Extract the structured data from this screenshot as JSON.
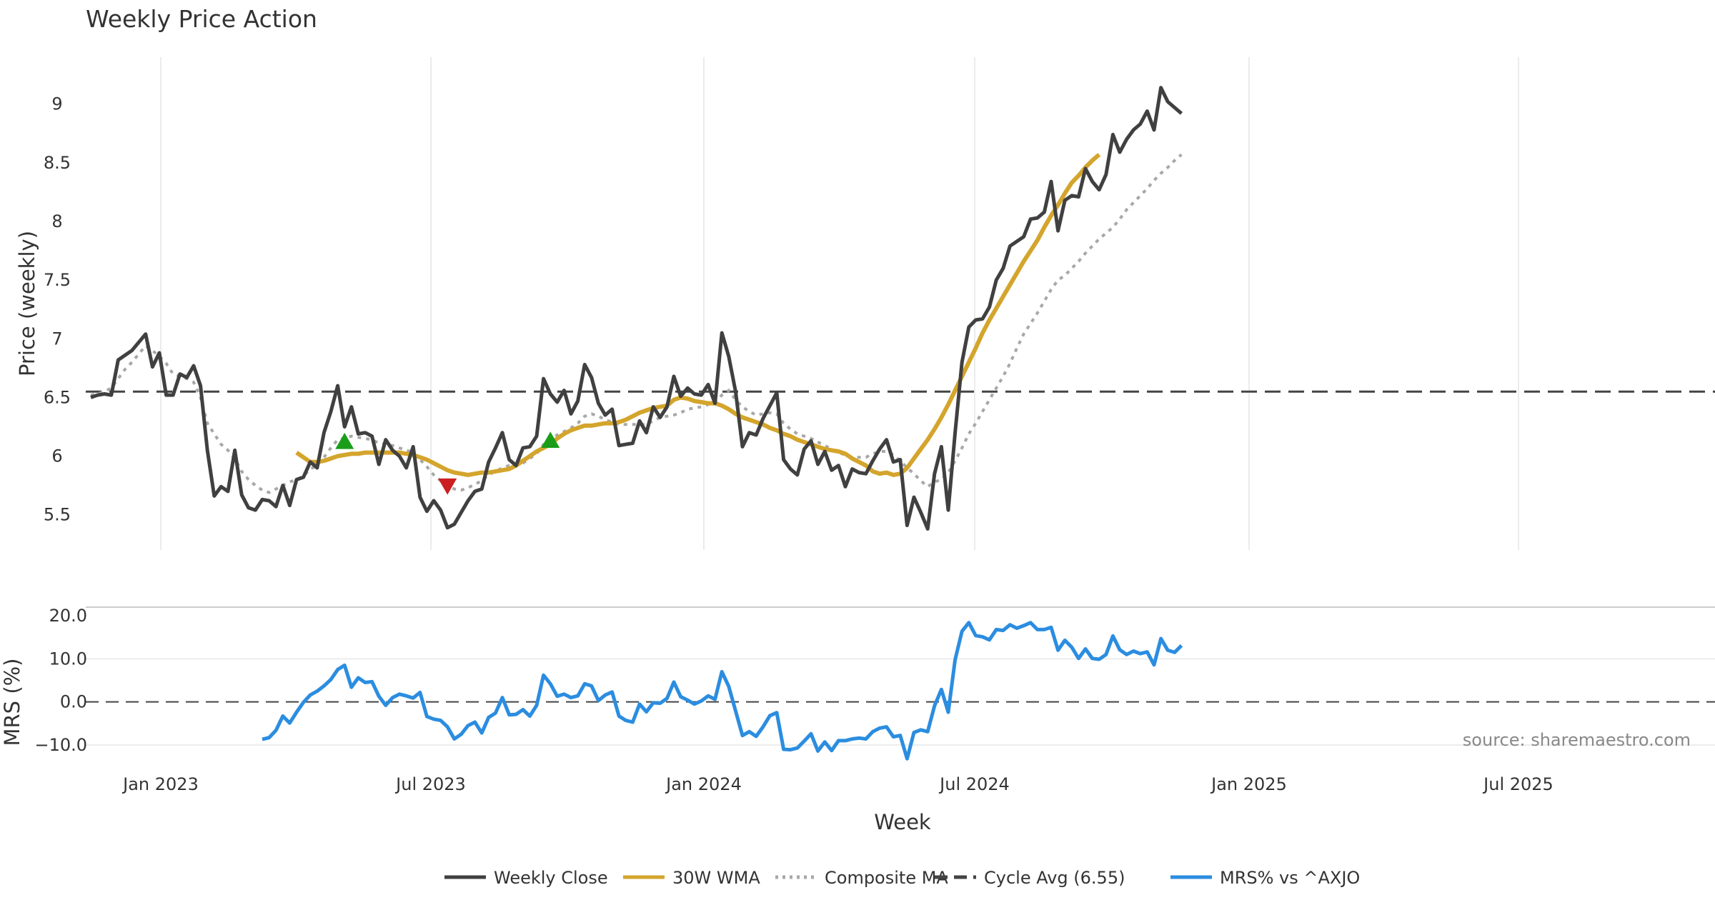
{
  "chart_data": {
    "type": "line",
    "title": "Weekly Price Action",
    "xlabel": "Week",
    "x_ticks": [
      "Jan 2023",
      "Jul 2023",
      "Jan 2024",
      "Jul 2024",
      "Jan 2025",
      "Jul 2025"
    ],
    "price_panel": {
      "ylabel": "Price (weekly)",
      "ylim": [
        5.2,
        9.4
      ],
      "y_ticks": [
        "5.5",
        "6",
        "6.5",
        "7",
        "7.5",
        "8",
        "8.5",
        "9"
      ],
      "grid": "vertical",
      "series": [
        {
          "name": "Weekly Close",
          "color": "#404040",
          "style": "solid",
          "values": [
            6.5,
            6.52,
            6.53,
            6.52,
            6.82,
            6.86,
            6.9,
            6.97,
            7.04,
            6.76,
            6.88,
            6.52,
            6.52,
            6.7,
            6.67,
            6.77,
            6.6,
            6.05,
            5.66,
            5.74,
            5.7,
            6.05,
            5.67,
            5.56,
            5.54,
            5.63,
            5.62,
            5.57,
            5.75,
            5.58,
            5.8,
            5.82,
            5.95,
            5.9,
            6.2,
            6.38,
            6.6,
            6.25,
            6.42,
            6.19,
            6.2,
            6.17,
            5.93,
            6.14,
            6.05,
            6.0,
            5.9,
            6.08,
            5.65,
            5.53,
            5.62,
            5.54,
            5.39,
            5.42,
            5.52,
            5.62,
            5.7,
            5.72,
            5.95,
            6.07,
            6.2,
            5.97,
            5.92,
            6.07,
            6.08,
            6.17,
            6.66,
            6.53,
            6.46,
            6.56,
            6.36,
            6.47,
            6.78,
            6.67,
            6.45,
            6.35,
            6.4,
            6.09,
            6.1,
            6.11,
            6.3,
            6.2,
            6.42,
            6.33,
            6.42,
            6.68,
            6.51,
            6.58,
            6.53,
            6.52,
            6.61,
            6.45,
            7.05,
            6.85,
            6.55,
            6.08,
            6.2,
            6.18,
            6.32,
            6.43,
            6.54,
            5.97,
            5.89,
            5.84,
            6.06,
            6.13,
            5.93,
            6.04,
            5.88,
            5.92,
            5.74,
            5.89,
            5.86,
            5.85,
            5.96,
            6.06,
            6.14,
            5.95,
            5.97,
            5.41,
            5.65,
            5.52,
            5.38,
            5.85,
            6.08,
            5.54,
            6.2,
            6.8,
            7.1,
            7.16,
            7.17,
            7.27,
            7.5,
            7.6,
            7.79,
            7.83,
            7.87,
            8.02,
            8.03,
            8.08,
            8.34,
            7.92,
            8.18,
            8.22,
            8.21,
            8.45,
            8.34,
            8.27,
            8.4,
            8.74,
            8.59,
            8.7,
            8.78,
            8.83,
            8.94,
            8.78,
            9.14,
            9.02,
            8.97,
            8.92
          ]
        },
        {
          "name": "30W WMA",
          "color": "#d4a52c",
          "style": "solid",
          "start_week": 30,
          "values": [
            6.03,
            5.99,
            5.95,
            5.95,
            5.96,
            5.98,
            6.0,
            6.01,
            6.02,
            6.02,
            6.03,
            6.03,
            6.03,
            6.03,
            6.03,
            6.03,
            6.02,
            6.01,
            5.99,
            5.97,
            5.94,
            5.91,
            5.88,
            5.86,
            5.85,
            5.84,
            5.85,
            5.86,
            5.86,
            5.87,
            5.88,
            5.89,
            5.92,
            5.96,
            6.0,
            6.04,
            6.07,
            6.1,
            6.15,
            6.19,
            6.22,
            6.24,
            6.26,
            6.26,
            6.27,
            6.28,
            6.28,
            6.29,
            6.31,
            6.34,
            6.37,
            6.39,
            6.41,
            6.42,
            6.43,
            6.48,
            6.5,
            6.49,
            6.47,
            6.46,
            6.45,
            6.45,
            6.43,
            6.4,
            6.36,
            6.33,
            6.31,
            6.29,
            6.27,
            6.24,
            6.22,
            6.19,
            6.17,
            6.14,
            6.12,
            6.1,
            6.08,
            6.06,
            6.05,
            6.04,
            6.02,
            5.98,
            5.95,
            5.92,
            5.87,
            5.85,
            5.86,
            5.84,
            5.85,
            5.9,
            5.98,
            6.06,
            6.14,
            6.23,
            6.33,
            6.44,
            6.56,
            6.68,
            6.8,
            6.92,
            7.05,
            7.16,
            7.26,
            7.36,
            7.46,
            7.56,
            7.66,
            7.75,
            7.84,
            7.95,
            8.05,
            8.14,
            8.24,
            8.33,
            8.39,
            8.46,
            8.52,
            8.57
          ]
        },
        {
          "name": "Composite MA",
          "color": "#a8a8a8",
          "style": "dotted",
          "values": [
            6.52,
            6.53,
            6.55,
            6.58,
            6.66,
            6.74,
            6.8,
            6.87,
            6.94,
            6.9,
            6.85,
            6.79,
            6.7,
            6.68,
            6.66,
            6.63,
            6.5,
            6.28,
            6.19,
            6.1,
            6.05,
            5.98,
            5.87,
            5.8,
            5.75,
            5.71,
            5.69,
            5.72,
            5.75,
            5.78,
            5.8,
            5.83,
            5.89,
            5.92,
            5.99,
            6.07,
            6.14,
            6.15,
            6.17,
            6.16,
            6.15,
            6.14,
            6.11,
            6.1,
            6.09,
            6.07,
            6.05,
            6.03,
            5.97,
            5.91,
            5.84,
            5.79,
            5.75,
            5.72,
            5.71,
            5.73,
            5.76,
            5.79,
            5.84,
            5.87,
            5.9,
            5.92,
            5.93,
            5.94,
            5.98,
            6.02,
            6.1,
            6.15,
            6.18,
            6.21,
            6.24,
            6.28,
            6.34,
            6.36,
            6.34,
            6.31,
            6.29,
            6.27,
            6.27,
            6.27,
            6.27,
            6.27,
            6.3,
            6.33,
            6.34,
            6.35,
            6.37,
            6.4,
            6.41,
            6.42,
            6.44,
            6.46,
            6.52,
            6.56,
            6.48,
            6.42,
            6.38,
            6.35,
            6.36,
            6.37,
            6.36,
            6.28,
            6.23,
            6.19,
            6.17,
            6.15,
            6.12,
            6.09,
            6.06,
            6.03,
            6.01,
            5.99,
            5.99,
            5.99,
            6.02,
            6.04,
            6.04,
            6.01,
            5.96,
            5.9,
            5.85,
            5.79,
            5.74,
            5.78,
            5.8,
            5.86,
            5.96,
            6.07,
            6.19,
            6.28,
            6.38,
            6.48,
            6.58,
            6.68,
            6.79,
            6.92,
            7.04,
            7.13,
            7.22,
            7.32,
            7.42,
            7.5,
            7.54,
            7.6,
            7.66,
            7.73,
            7.79,
            7.85,
            7.9,
            7.95,
            8.02,
            8.1,
            8.16,
            8.22,
            8.28,
            8.35,
            8.41,
            8.46,
            8.52,
            8.57
          ]
        },
        {
          "name": "Cycle Avg (6.55)",
          "color": "#444444",
          "style": "dashed",
          "value": 6.55
        }
      ],
      "markers": [
        {
          "type": "buy",
          "symbol": "triangle-up",
          "color": "#1a9e1a",
          "week": 37,
          "price": 6.12
        },
        {
          "type": "sell",
          "symbol": "triangle-down",
          "color": "#cc1f1f",
          "week": 52,
          "price": 5.75
        },
        {
          "type": "buy",
          "symbol": "triangle-up",
          "color": "#1a9e1a",
          "week": 67,
          "price": 6.13
        }
      ]
    },
    "mrs_panel": {
      "ylabel": "MRS (%)",
      "ylim": [
        -12,
        22
      ],
      "y_ticks": [
        "−10.0",
        "0.0",
        "10.0",
        "20.0"
      ],
      "zero_line": "dashed",
      "series": [
        {
          "name": "MRS% vs ^AXJO",
          "color": "#2b8de0",
          "style": "solid",
          "start_week": 25,
          "values": [
            -8.7,
            -8.3,
            -6.6,
            -3.3,
            -4.9,
            -2.4,
            -0.1,
            1.6,
            2.5,
            3.7,
            5.2,
            7.5,
            8.5,
            3.4,
            5.6,
            4.5,
            4.7,
            1.3,
            -0.8,
            1.0,
            1.8,
            1.4,
            0.9,
            2.2,
            -3.4,
            -4.0,
            -4.3,
            -5.8,
            -8.6,
            -7.5,
            -5.5,
            -4.7,
            -7.2,
            -3.6,
            -2.6,
            1.0,
            -3.0,
            -2.9,
            -1.8,
            -3.3,
            -0.8,
            6.2,
            4.2,
            1.3,
            1.8,
            1.0,
            1.4,
            4.2,
            3.7,
            0.3,
            1.6,
            2.3,
            -3.3,
            -4.3,
            -4.7,
            -0.5,
            -2.3,
            -0.2,
            -0.3,
            0.8,
            4.6,
            1.2,
            0.4,
            -0.5,
            0.2,
            1.4,
            0.6,
            7.0,
            3.6,
            -2.1,
            -7.8,
            -6.9,
            -8.0,
            -5.8,
            -3.2,
            -2.5,
            -11.0,
            -11.1,
            -10.7,
            -9.1,
            -7.4,
            -11.4,
            -9.3,
            -11.3,
            -9.0,
            -9.0,
            -8.6,
            -8.4,
            -8.6,
            -6.9,
            -6.1,
            -5.8,
            -8.1,
            -7.8,
            -13.2,
            -7.1,
            -6.5,
            -6.9,
            -0.9,
            2.9,
            -2.4,
            9.8,
            16.4,
            18.4,
            15.4,
            15.1,
            14.4,
            16.8,
            16.6,
            17.9,
            17.1,
            17.7,
            18.4,
            16.8,
            16.8,
            17.3,
            12.0,
            14.3,
            12.7,
            10.1,
            12.3,
            10.1,
            9.9,
            11.0,
            15.3,
            12.1,
            11.0,
            11.8,
            11.2,
            11.6,
            8.6,
            14.7,
            12.0,
            11.5,
            13.1
          ]
        }
      ]
    },
    "legend": {
      "placement": "bottom-center",
      "items": [
        {
          "label": "Weekly Close",
          "color": "#404040",
          "style": "solid"
        },
        {
          "label": "30W WMA",
          "color": "#d4a52c",
          "style": "solid"
        },
        {
          "label": "Composite MA",
          "color": "#a8a8a8",
          "style": "dotted"
        },
        {
          "label": "Cycle Avg (6.55)",
          "color": "#444444",
          "style": "dashed"
        },
        {
          "label": "MRS% vs ^AXJO",
          "color": "#2b8de0",
          "style": "solid"
        }
      ]
    },
    "source": "source: sharemaestro.com"
  }
}
